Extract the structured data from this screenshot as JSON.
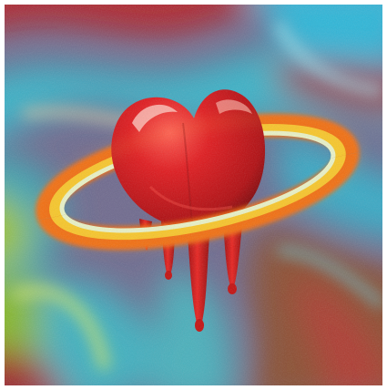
{
  "image": {
    "subject": "melting-heart-with-ring",
    "colors": {
      "heart": "#d9141a",
      "heart_highlight": "#ff6b5e",
      "heart_shadow": "#7a0508",
      "ring_outer": "#f06a0c",
      "ring_mid": "#f7c82a",
      "ring_inner": "#e8f2c8",
      "bg_teal": "#3ab3c8",
      "bg_red": "#b0262e",
      "bg_lime": "#9cc42a",
      "bg_violet": "#7a5a9a",
      "bg_brown": "#8a5030",
      "frame": "#ffffff"
    }
  }
}
